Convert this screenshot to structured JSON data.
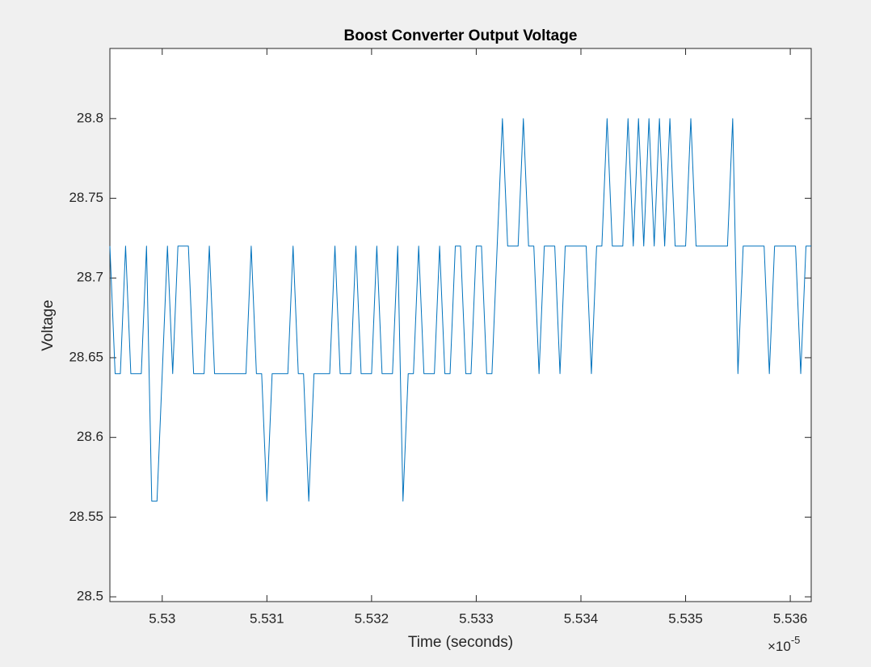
{
  "chart_data": {
    "type": "line",
    "title": "Boost Converter Output Voltage",
    "x_label": "Time (seconds)",
    "y_label": "Voltage",
    "x_multiplier": {
      "base": "×10",
      "exponent": "-5"
    },
    "color": "#0072bd",
    "x": [
      5.5295,
      5.52955,
      5.5296,
      5.52965,
      5.5297,
      5.5298,
      5.52985,
      5.5299,
      5.52995,
      5.53005,
      5.5301,
      5.53015,
      5.53025,
      5.5303,
      5.5304,
      5.53045,
      5.5305,
      5.5308,
      5.53085,
      5.5309,
      5.53095,
      5.531,
      5.53105,
      5.5312,
      5.53125,
      5.5313,
      5.53135,
      5.5314,
      5.53145,
      5.5316,
      5.53165,
      5.5317,
      5.5318,
      5.53185,
      5.5319,
      5.532,
      5.53205,
      5.5321,
      5.5322,
      5.53225,
      5.5323,
      5.53235,
      5.5324,
      5.53245,
      5.5325,
      5.5326,
      5.53265,
      5.5327,
      5.53275,
      5.5328,
      5.53285,
      5.5329,
      5.53295,
      5.533,
      5.53305,
      5.5331,
      5.53315,
      5.5332,
      5.53325,
      5.5333,
      5.5334,
      5.53345,
      5.5335,
      5.53355,
      5.5336,
      5.53365,
      5.53375,
      5.5338,
      5.53385,
      5.53405,
      5.5341,
      5.53415,
      5.5342,
      5.53425,
      5.5343,
      5.5344,
      5.53445,
      5.5345,
      5.53455,
      5.5346,
      5.53465,
      5.5347,
      5.53475,
      5.5348,
      5.53485,
      5.5349,
      5.535,
      5.53505,
      5.5351,
      5.5354,
      5.53545,
      5.5355,
      5.53555,
      5.53575,
      5.5358,
      5.53585,
      5.53605,
      5.5361,
      5.53615,
      5.5362
    ],
    "values": [
      28.72,
      28.64,
      28.64,
      28.72,
      28.64,
      28.64,
      28.72,
      28.56,
      28.56,
      28.72,
      28.64,
      28.72,
      28.72,
      28.64,
      28.64,
      28.72,
      28.64,
      28.64,
      28.72,
      28.64,
      28.64,
      28.56,
      28.64,
      28.64,
      28.72,
      28.64,
      28.64,
      28.56,
      28.64,
      28.64,
      28.72,
      28.64,
      28.64,
      28.72,
      28.64,
      28.64,
      28.72,
      28.64,
      28.64,
      28.72,
      28.56,
      28.64,
      28.64,
      28.72,
      28.64,
      28.64,
      28.72,
      28.64,
      28.64,
      28.72,
      28.72,
      28.64,
      28.64,
      28.72,
      28.72,
      28.64,
      28.64,
      28.72,
      28.8,
      28.72,
      28.72,
      28.8,
      28.72,
      28.72,
      28.64,
      28.72,
      28.72,
      28.64,
      28.72,
      28.72,
      28.64,
      28.72,
      28.72,
      28.8,
      28.72,
      28.72,
      28.8,
      28.72,
      28.8,
      28.72,
      28.8,
      28.72,
      28.8,
      28.72,
      28.8,
      28.72,
      28.72,
      28.8,
      28.72,
      28.72,
      28.8,
      28.64,
      28.72,
      28.72,
      28.64,
      28.72,
      28.72,
      28.64,
      28.72,
      28.72
    ],
    "xlim": [
      5.5295,
      5.5362
    ],
    "ylim": [
      28.497,
      28.844
    ],
    "xticks": [
      5.53,
      5.531,
      5.532,
      5.533,
      5.534,
      5.535,
      5.536
    ],
    "yticks": [
      28.5,
      28.55,
      28.6,
      28.65,
      28.7,
      28.75,
      28.8
    ],
    "grid": false
  }
}
